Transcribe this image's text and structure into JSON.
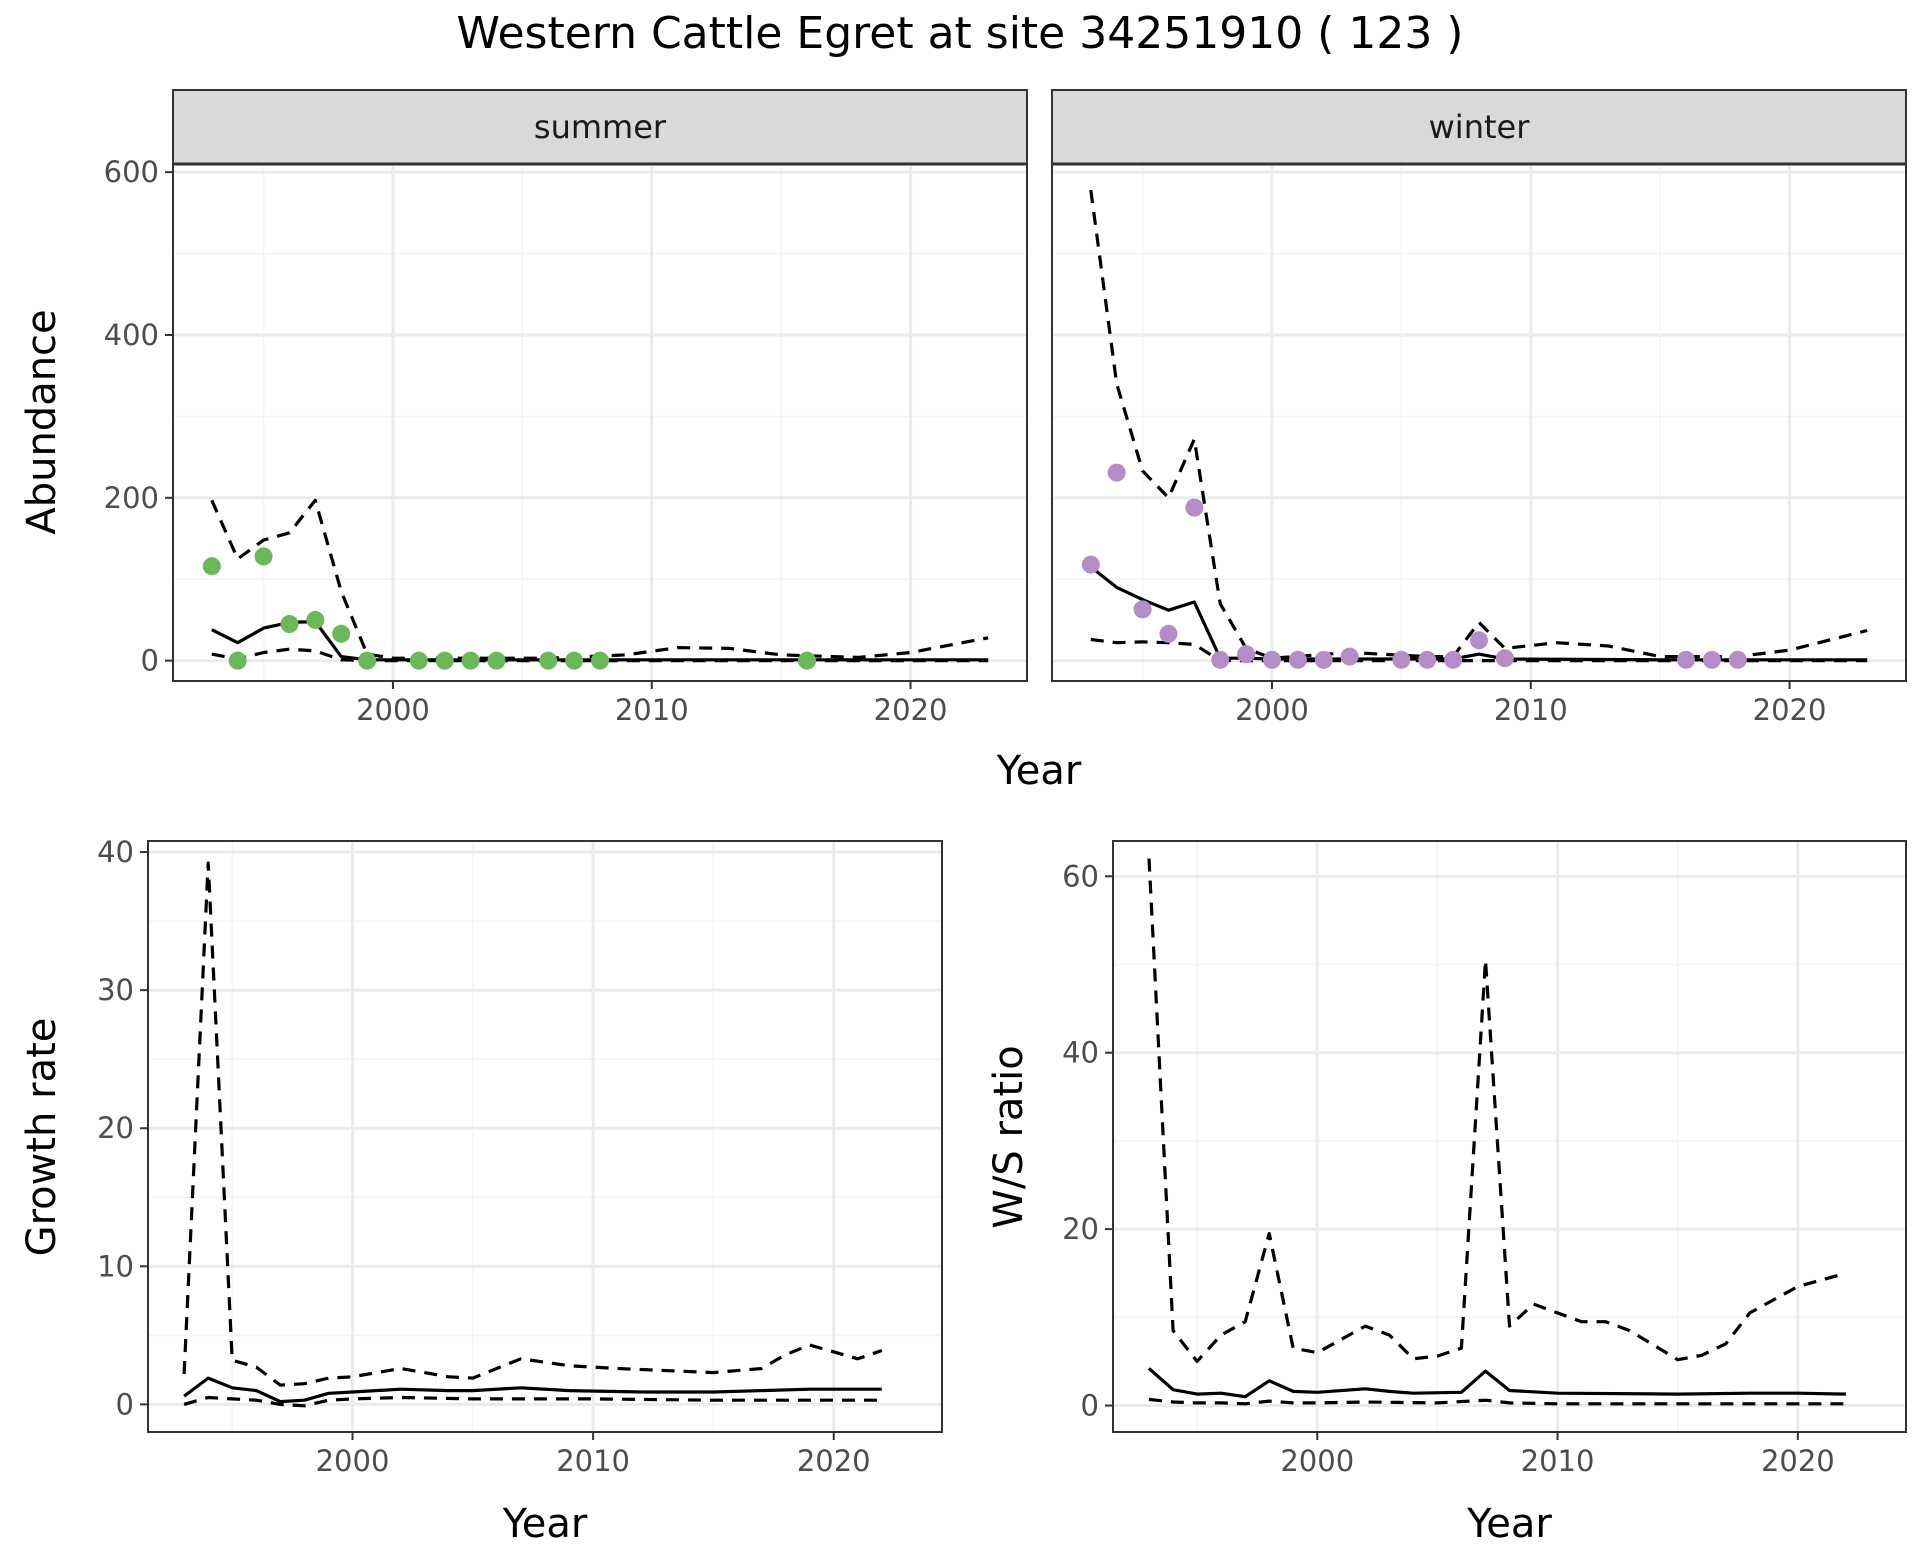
{
  "title": "Western Cattle Egret at site 34251910 ( 123 )",
  "colors": {
    "summer_points": "#6ab858",
    "winter_points": "#b48cc7",
    "line": "#000000",
    "strip_bg": "#d9d9d9",
    "grid_major": "#ebebeb",
    "grid_minor": "#f5f5f5",
    "panel_border": "#333333"
  },
  "top_xlabel": "Year",
  "chart_data": [
    {
      "type": "line",
      "facet": "summer",
      "ylabel": "Abundance",
      "xlabel": "",
      "xlim": [
        1991.5,
        2024.5
      ],
      "ylim": [
        -25,
        610
      ],
      "x_ticks": [
        2000,
        2010,
        2020
      ],
      "y_ticks": [
        0,
        200,
        400,
        600
      ],
      "grid": true,
      "points": {
        "x": [
          1993,
          1994,
          1995,
          1996,
          1997,
          1998,
          1999,
          2001,
          2002,
          2003,
          2004,
          2006,
          2007,
          2008,
          2016
        ],
        "y": [
          116,
          0,
          128,
          45,
          50,
          33,
          0,
          0,
          0,
          0,
          0,
          0,
          0,
          0,
          0
        ]
      },
      "series": [
        {
          "style": "solid",
          "x": [
            1993,
            1994,
            1995,
            1996,
            1997,
            1998,
            1999,
            2000,
            2005,
            2010,
            2015,
            2020,
            2023
          ],
          "y": [
            38,
            22,
            40,
            47,
            48,
            5,
            1,
            1,
            1,
            1,
            1,
            1,
            1
          ]
        },
        {
          "style": "dashed",
          "x": [
            1993,
            1994,
            1995,
            1996,
            1997,
            1998,
            1999,
            2000,
            2003,
            2006,
            2009,
            2011,
            2013,
            2015,
            2018,
            2020,
            2023
          ],
          "y": [
            197,
            125,
            148,
            157,
            197,
            85,
            8,
            3,
            3,
            3,
            7,
            16,
            15,
            7,
            4,
            10,
            28
          ]
        },
        {
          "style": "dashed",
          "x": [
            1993,
            1994,
            1995,
            1996,
            1997,
            1998,
            1999,
            2005,
            2010,
            2015,
            2020,
            2023
          ],
          "y": [
            8,
            2,
            10,
            14,
            12,
            1,
            0,
            0,
            0,
            0,
            0,
            0
          ]
        }
      ]
    },
    {
      "type": "line",
      "facet": "winter",
      "ylabel": "",
      "xlabel": "",
      "xlim": [
        1991.5,
        2024.5
      ],
      "ylim": [
        -25,
        610
      ],
      "x_ticks": [
        2000,
        2010,
        2020
      ],
      "y_ticks": [
        0,
        200,
        400,
        600
      ],
      "grid": true,
      "points": {
        "x": [
          1993,
          1994,
          1995,
          1996,
          1997,
          1998,
          1999,
          2000,
          2001,
          2002,
          2003,
          2005,
          2006,
          2007,
          2008,
          2009,
          2016,
          2017,
          2018
        ],
        "y": [
          118,
          231,
          63,
          33,
          188,
          1,
          8,
          1,
          1,
          1,
          5,
          1,
          1,
          1,
          25,
          3,
          1,
          1,
          1
        ]
      },
      "series": [
        {
          "style": "solid",
          "x": [
            1993,
            1994,
            1995,
            1996,
            1997,
            1998,
            1999,
            2000,
            2007,
            2008,
            2009,
            2015,
            2020,
            2023
          ],
          "y": [
            115,
            90,
            75,
            62,
            72,
            3,
            3,
            2,
            2,
            8,
            2,
            1,
            1,
            1
          ]
        },
        {
          "style": "dashed",
          "x": [
            1993,
            1994,
            1995,
            1996,
            1997,
            1998,
            1999,
            2000,
            2003,
            2006,
            2007,
            2008,
            2009,
            2011,
            2013,
            2015,
            2018,
            2020,
            2023
          ],
          "y": [
            578,
            340,
            233,
            200,
            272,
            70,
            15,
            3,
            10,
            5,
            5,
            47,
            15,
            22,
            18,
            5,
            5,
            13,
            37
          ]
        },
        {
          "style": "dashed",
          "x": [
            1993,
            1994,
            1995,
            1996,
            1997,
            1998,
            1999,
            2005,
            2010,
            2015,
            2020,
            2023
          ],
          "y": [
            26,
            22,
            23,
            22,
            20,
            0,
            0,
            0,
            0,
            0,
            0,
            0
          ]
        }
      ]
    },
    {
      "type": "line",
      "ylabel": "Growth rate",
      "xlabel": "Year",
      "xlim": [
        1991.5,
        2024.5
      ],
      "ylim": [
        -2,
        40.8
      ],
      "x_ticks": [
        2000,
        2010,
        2020
      ],
      "y_ticks": [
        0,
        10,
        20,
        30,
        40
      ],
      "grid": true,
      "series": [
        {
          "style": "solid",
          "x": [
            1993,
            1994,
            1995,
            1996,
            1997,
            1998,
            1999,
            2000,
            2002,
            2004,
            2005,
            2007,
            2009,
            2012,
            2015,
            2019,
            2022
          ],
          "y": [
            0.6,
            1.9,
            1.2,
            1.0,
            0.2,
            0.3,
            0.8,
            0.9,
            1.1,
            1.0,
            1.0,
            1.2,
            1.0,
            0.9,
            0.9,
            1.1,
            1.1
          ]
        },
        {
          "style": "dashed",
          "x": [
            1993,
            1994,
            1995,
            1996,
            1997,
            1998,
            1999,
            2000,
            2002,
            2004,
            2005,
            2007,
            2009,
            2011,
            2015,
            2017,
            2018,
            2019,
            2021,
            2022
          ],
          "y": [
            2.2,
            39.2,
            3.2,
            2.7,
            1.4,
            1.5,
            1.9,
            2.0,
            2.6,
            2.0,
            1.9,
            3.3,
            2.8,
            2.6,
            2.3,
            2.6,
            3.6,
            4.3,
            3.3,
            3.9
          ]
        },
        {
          "style": "dashed",
          "x": [
            1993,
            1994,
            1995,
            1996,
            1997,
            1998,
            1999,
            2000,
            2002,
            2005,
            2010,
            2015,
            2020,
            2022
          ],
          "y": [
            0.0,
            0.5,
            0.4,
            0.3,
            0.0,
            -0.1,
            0.3,
            0.4,
            0.5,
            0.4,
            0.4,
            0.3,
            0.3,
            0.3
          ]
        }
      ]
    },
    {
      "type": "line",
      "ylabel": "W/S ratio",
      "xlabel": "Year",
      "xlim": [
        1991.5,
        2024.5
      ],
      "ylim": [
        -3,
        64
      ],
      "x_ticks": [
        2000,
        2010,
        2020
      ],
      "y_ticks": [
        0,
        20,
        40,
        60
      ],
      "grid": true,
      "series": [
        {
          "style": "solid",
          "x": [
            1993,
            1994,
            1995,
            1996,
            1997,
            1998,
            1999,
            2000,
            2002,
            2003,
            2004,
            2006,
            2007,
            2008,
            2010,
            2015,
            2018,
            2020,
            2022
          ],
          "y": [
            4.2,
            1.8,
            1.3,
            1.4,
            1.0,
            2.8,
            1.6,
            1.5,
            1.9,
            1.6,
            1.4,
            1.5,
            3.9,
            1.7,
            1.4,
            1.3,
            1.4,
            1.4,
            1.3
          ]
        },
        {
          "style": "dashed",
          "x": [
            1993,
            1994,
            1995,
            1996,
            1997,
            1998,
            1999,
            2000,
            2001,
            2002,
            2003,
            2004,
            2005,
            2006,
            2007,
            2008,
            2009,
            2011,
            2012,
            2013,
            2015,
            2016,
            2017,
            2018,
            2020,
            2022
          ],
          "y": [
            62,
            8.5,
            5,
            8,
            9.5,
            19.5,
            6.5,
            6,
            7.5,
            9,
            8,
            5.3,
            5.6,
            6.5,
            50.5,
            9,
            11.5,
            9.5,
            9.5,
            8.5,
            5.2,
            5.7,
            7,
            10.5,
            13.5,
            15
          ]
        },
        {
          "style": "dashed",
          "x": [
            1993,
            1994,
            1995,
            1996,
            1997,
            1998,
            1999,
            2000,
            2002,
            2005,
            2007,
            2008,
            2010,
            2015,
            2020,
            2022
          ],
          "y": [
            0.7,
            0.4,
            0.3,
            0.3,
            0.2,
            0.5,
            0.3,
            0.3,
            0.4,
            0.3,
            0.6,
            0.3,
            0.2,
            0.2,
            0.2,
            0.2
          ]
        }
      ]
    }
  ]
}
